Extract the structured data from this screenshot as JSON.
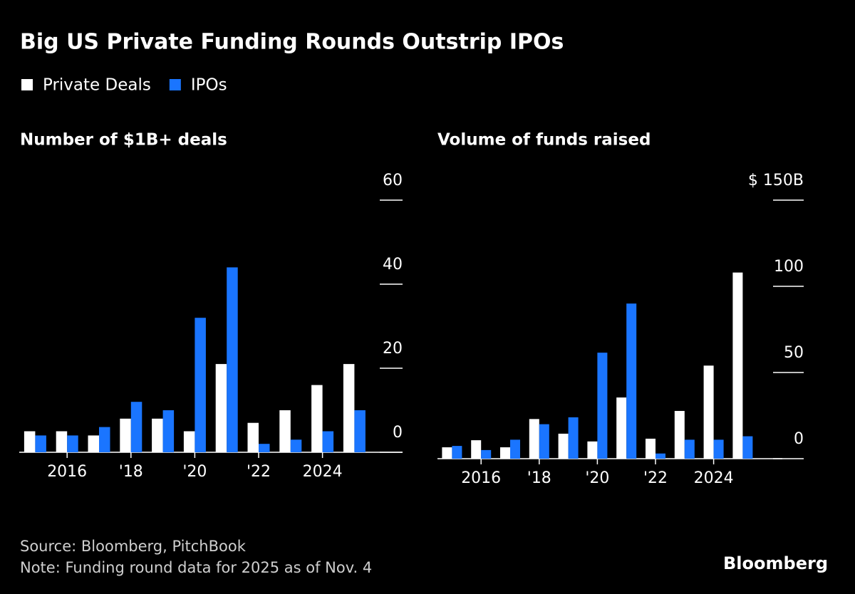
{
  "title": "Big US Private Funding Rounds Outstrip IPOs",
  "source": "Source: Bloomberg, PitchBook",
  "note": "Note: Funding round data for 2025 as of Nov. 4",
  "brand": "Bloomberg",
  "chart_data": [
    {
      "type": "bar",
      "title": "Number of $1B+ deals",
      "categories": [
        null,
        "2016",
        null,
        "'18",
        null,
        "'20",
        null,
        "'22",
        null,
        "2024",
        null
      ],
      "series": [
        {
          "name": "Private Deals",
          "color": "#ffffff",
          "values": [
            5,
            5,
            4,
            8,
            8,
            5,
            21,
            7,
            10,
            16,
            21
          ]
        },
        {
          "name": "IPOs",
          "color": "#1a75ff",
          "values": [
            4,
            4,
            6,
            12,
            10,
            32,
            44,
            2,
            3,
            5,
            10
          ]
        }
      ],
      "ylim": [
        0,
        60
      ],
      "yticks": [
        0,
        20,
        40,
        60
      ]
    },
    {
      "type": "bar",
      "title": "Volume of funds raised",
      "categories": [
        null,
        "2016",
        null,
        "'18",
        null,
        "'20",
        null,
        "'22",
        null,
        "2024",
        null
      ],
      "series": [
        {
          "name": "Private Deals",
          "color": "#ffffff",
          "values": [
            6.6,
            10.7,
            6.6,
            23,
            14.5,
            10,
            35.5,
            11.6,
            27.7,
            54,
            108
          ]
        },
        {
          "name": "IPOs",
          "color": "#1a75ff",
          "values": [
            7.4,
            5,
            11,
            20,
            24,
            61.5,
            90,
            3,
            11,
            11,
            13
          ]
        }
      ],
      "ylim": [
        0,
        150
      ],
      "yticks": [
        0,
        50,
        100,
        {
          "value": 150,
          "label": "$ 150B"
        }
      ]
    }
  ]
}
